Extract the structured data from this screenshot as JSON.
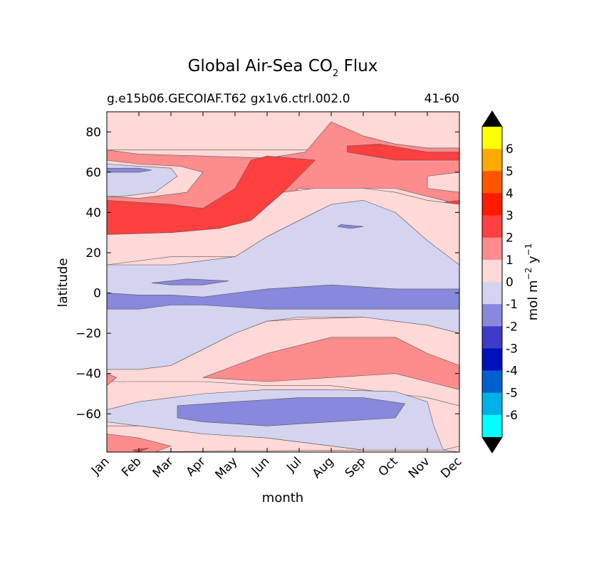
{
  "chart_data": {
    "type": "heatmap",
    "subtype": "filled-contour",
    "title_prefix": "Global Air-Sea CO",
    "title_sub": "2",
    "title_suffix": " Flux",
    "subtitle_left": "g.e15b06.GECOIAF.T62 gx1v6.ctrl.002.0",
    "subtitle_right": "41-60",
    "xlabel": "month",
    "ylabel": "latitude",
    "x_ticks": [
      "Jan",
      "Feb",
      "Mar",
      "Apr",
      "May",
      "Jun",
      "Jul",
      "Aug",
      "Sep",
      "Oct",
      "Nov",
      "Dec"
    ],
    "xlim": [
      1,
      12
    ],
    "ylim": [
      -79,
      90
    ],
    "y_ticks": [
      80,
      60,
      40,
      20,
      0,
      -20,
      -40,
      -60
    ],
    "colorbar": {
      "label_main": "mol m",
      "label_exp1": "−2",
      "label_mid": " y",
      "label_exp2": "−1",
      "levels": [
        6,
        5,
        4,
        3,
        2,
        1,
        0,
        -1,
        -2,
        -3,
        -4,
        -5,
        -6
      ],
      "level_labels": [
        "6",
        "5",
        "4",
        "3",
        "2",
        "1",
        "0",
        "-1",
        "-2",
        "-3",
        "-4",
        "-5",
        "-6"
      ],
      "bands": [
        {
          "range": [
            6,
            7
          ],
          "color": "#ffff00"
        },
        {
          "range": [
            5,
            6
          ],
          "color": "#ffaa00"
        },
        {
          "range": [
            4,
            5
          ],
          "color": "#ff5500"
        },
        {
          "range": [
            3,
            4
          ],
          "color": "#ff1a00"
        },
        {
          "range": [
            2,
            3
          ],
          "color": "#ff4040"
        },
        {
          "range": [
            1,
            2
          ],
          "color": "#ff8c8c"
        },
        {
          "range": [
            0,
            1
          ],
          "color": "#ffd8d8"
        },
        {
          "range": [
            -1,
            0
          ],
          "color": "#d4d4f0"
        },
        {
          "range": [
            -2,
            -1
          ],
          "color": "#8888dd"
        },
        {
          "range": [
            -3,
            -2
          ],
          "color": "#3c3cc8"
        },
        {
          "range": [
            -4,
            -3
          ],
          "color": "#0010bb"
        },
        {
          "range": [
            -5,
            -4
          ],
          "color": "#0060d0"
        },
        {
          "range": [
            -6,
            -5
          ],
          "color": "#00b0e8"
        },
        {
          "range": [
            -7,
            -6
          ],
          "color": "#00ffff"
        }
      ],
      "extend_max_color": "#000000",
      "extend_min_color": "#000000"
    },
    "regions": [
      {
        "name": "region-north-polar-0-1",
        "level": "0-1",
        "color": "#ffd8d8",
        "points": [
          [
            1,
            90
          ],
          [
            12,
            90
          ],
          [
            12,
            71
          ],
          [
            1,
            71
          ]
        ]
      },
      {
        "name": "region-northern-high-lat-1-2",
        "level": "1-2",
        "color": "#ff8c8c",
        "points": [
          [
            1,
            71
          ],
          [
            2,
            69
          ],
          [
            4,
            68
          ],
          [
            6,
            67
          ],
          [
            7.2,
            70
          ],
          [
            8,
            85
          ],
          [
            9,
            78
          ],
          [
            10,
            74
          ],
          [
            11,
            72
          ],
          [
            12,
            72
          ],
          [
            12,
            44
          ],
          [
            11,
            48
          ],
          [
            10,
            52
          ],
          [
            9,
            52
          ],
          [
            8,
            51
          ],
          [
            7,
            52
          ],
          [
            6,
            42
          ],
          [
            5,
            30
          ],
          [
            4,
            28
          ],
          [
            2,
            24
          ],
          [
            1,
            24
          ]
        ]
      },
      {
        "name": "region-north-subpolar-0-1",
        "level": "0-1",
        "color": "#ffd8d8",
        "points": [
          [
            1,
            66
          ],
          [
            2,
            64
          ],
          [
            3.3,
            63
          ],
          [
            4,
            60
          ],
          [
            3.5,
            50
          ],
          [
            2,
            47
          ],
          [
            1,
            48
          ]
        ]
      },
      {
        "name": "region-north-subpolar-neg-1-0",
        "level": "-1-0",
        "color": "#d4d4f0",
        "points": [
          [
            1,
            64
          ],
          [
            2,
            63
          ],
          [
            3,
            62
          ],
          [
            3.2,
            58
          ],
          [
            2.5,
            50
          ],
          [
            1.5,
            48
          ],
          [
            1,
            48
          ]
        ]
      },
      {
        "name": "region-north-patch-neg-2-1",
        "level": "-2--1",
        "color": "#8888dd",
        "points": [
          [
            1,
            62
          ],
          [
            2,
            62
          ],
          [
            2.4,
            61
          ],
          [
            2,
            60
          ],
          [
            1,
            60
          ]
        ]
      },
      {
        "name": "region-north-mid-lat-2-3",
        "level": "2-3",
        "color": "#ff4040",
        "points": [
          [
            1,
            46
          ],
          [
            3,
            44
          ],
          [
            4,
            42
          ],
          [
            5,
            52
          ],
          [
            5.5,
            66
          ],
          [
            6,
            68
          ],
          [
            7.5,
            66
          ],
          [
            6.5,
            50
          ],
          [
            5.5,
            36
          ],
          [
            4.5,
            32
          ],
          [
            3,
            30
          ],
          [
            1,
            29
          ]
        ]
      },
      {
        "name": "region-north-east-2-3",
        "level": "2-3",
        "color": "#ff4040",
        "points": [
          [
            8.5,
            73
          ],
          [
            9.5,
            74
          ],
          [
            11,
            70
          ],
          [
            12,
            70
          ],
          [
            12,
            66
          ],
          [
            10,
            66
          ],
          [
            8.5,
            70
          ]
        ]
      },
      {
        "name": "region-north-east-patch-2-3",
        "level": "2-3",
        "color": "#ff4040",
        "points": [
          [
            11,
            44
          ],
          [
            12,
            46
          ],
          [
            12,
            34
          ],
          [
            11.2,
            36
          ],
          [
            10.8,
            40
          ]
        ]
      },
      {
        "name": "region-north-east-0-1",
        "level": "0-1",
        "color": "#ffd8d8",
        "points": [
          [
            11,
            58
          ],
          [
            12,
            60
          ],
          [
            12,
            50
          ],
          [
            11,
            52
          ]
        ]
      },
      {
        "name": "region-north-subtropics-0-1",
        "level": "0-1",
        "color": "#ffd8d8",
        "points": [
          [
            1,
            29
          ],
          [
            3,
            30
          ],
          [
            4.5,
            32
          ],
          [
            5.5,
            36
          ],
          [
            6.5,
            50
          ],
          [
            7.5,
            52
          ],
          [
            9,
            52
          ],
          [
            10,
            50
          ],
          [
            11,
            46
          ],
          [
            12,
            44
          ],
          [
            12,
            14
          ],
          [
            11,
            20
          ],
          [
            10,
            26
          ],
          [
            9,
            34
          ],
          [
            8,
            44
          ],
          [
            7,
            36
          ],
          [
            6,
            28
          ],
          [
            5,
            18
          ],
          [
            3,
            18
          ],
          [
            1,
            14
          ]
        ]
      },
      {
        "name": "region-tropics-neg-1-0",
        "level": "-1-0",
        "color": "#d4d4f0",
        "points": [
          [
            1,
            14
          ],
          [
            3,
            14
          ],
          [
            5,
            18
          ],
          [
            6,
            28
          ],
          [
            7,
            36
          ],
          [
            8,
            44
          ],
          [
            9,
            46
          ],
          [
            10,
            40
          ],
          [
            11,
            26
          ],
          [
            12,
            14
          ],
          [
            12,
            -20
          ],
          [
            11,
            -16
          ],
          [
            9,
            -12
          ],
          [
            7,
            -12
          ],
          [
            6,
            -14
          ],
          [
            5,
            -20
          ],
          [
            4,
            -28
          ],
          [
            3,
            -36
          ],
          [
            2,
            -38
          ],
          [
            1,
            -38
          ]
        ]
      },
      {
        "name": "region-equatorial-neg-2-1",
        "level": "-2--1",
        "color": "#8888dd",
        "points": [
          [
            1,
            0
          ],
          [
            2,
            -1
          ],
          [
            3,
            -1
          ],
          [
            4,
            -2
          ],
          [
            6,
            2
          ],
          [
            8,
            4
          ],
          [
            10,
            2
          ],
          [
            12,
            2
          ],
          [
            12,
            -8
          ],
          [
            10,
            -8
          ],
          [
            8,
            -8
          ],
          [
            6,
            -8
          ],
          [
            4,
            -6
          ],
          [
            3,
            -6
          ],
          [
            2,
            -8
          ],
          [
            1,
            -8
          ]
        ]
      },
      {
        "name": "region-equatorial-patch-neg-2-1",
        "level": "-2--1",
        "color": "#8888dd",
        "points": [
          [
            2.4,
            5
          ],
          [
            3.5,
            7
          ],
          [
            4.8,
            6
          ],
          [
            4,
            4
          ],
          [
            3,
            4
          ]
        ]
      },
      {
        "name": "region-north-patch-2-neg-2-1",
        "level": "-2--1",
        "color": "#8888dd",
        "points": [
          [
            8.3,
            34
          ],
          [
            9,
            33
          ],
          [
            8.6,
            32
          ],
          [
            8.2,
            33
          ]
        ]
      },
      {
        "name": "region-south-subtropics-0-1",
        "level": "0-1",
        "color": "#ffd8d8",
        "points": [
          [
            1,
            -38
          ],
          [
            2,
            -38
          ],
          [
            3,
            -36
          ],
          [
            4,
            -28
          ],
          [
            5,
            -20
          ],
          [
            6,
            -14
          ],
          [
            7,
            -13
          ],
          [
            9,
            -12
          ],
          [
            11,
            -16
          ],
          [
            12,
            -20
          ],
          [
            12,
            -56
          ],
          [
            11,
            -52
          ],
          [
            10,
            -50
          ],
          [
            8,
            -46
          ],
          [
            6,
            -46
          ],
          [
            4,
            -44
          ],
          [
            2,
            -44
          ],
          [
            1,
            -44
          ]
        ]
      },
      {
        "name": "region-south-mid-lat-1-2",
        "level": "1-2",
        "color": "#ff8c8c",
        "points": [
          [
            4,
            -42
          ],
          [
            5,
            -36
          ],
          [
            6,
            -30
          ],
          [
            8,
            -22
          ],
          [
            10,
            -22
          ],
          [
            11,
            -30
          ],
          [
            12,
            -36
          ],
          [
            12,
            -48
          ],
          [
            11,
            -44
          ],
          [
            10,
            -40
          ],
          [
            8,
            -42
          ],
          [
            6,
            -44
          ]
        ]
      },
      {
        "name": "region-south-west-1-2",
        "level": "1-2",
        "color": "#ff8c8c",
        "points": [
          [
            1,
            -40
          ],
          [
            1.3,
            -42
          ],
          [
            1,
            -46
          ]
        ]
      },
      {
        "name": "region-southern-ocean-neg-1-0",
        "level": "-1-0",
        "color": "#d4d4f0",
        "points": [
          [
            1,
            -58
          ],
          [
            2,
            -54
          ],
          [
            4,
            -50
          ],
          [
            6,
            -48
          ],
          [
            8,
            -48
          ],
          [
            10,
            -49
          ],
          [
            11,
            -54
          ],
          [
            11.2,
            -66
          ],
          [
            11.5,
            -78
          ],
          [
            9,
            -78
          ],
          [
            6,
            -72
          ],
          [
            4,
            -70
          ],
          [
            2,
            -66
          ],
          [
            1,
            -64
          ]
        ]
      },
      {
        "name": "region-southern-ocean-neg-2-1",
        "level": "-2--1",
        "color": "#8888dd",
        "points": [
          [
            3.2,
            -56
          ],
          [
            5,
            -54
          ],
          [
            7,
            -52
          ],
          [
            9,
            -52
          ],
          [
            10.3,
            -55
          ],
          [
            10,
            -62
          ],
          [
            8,
            -64
          ],
          [
            6,
            -66
          ],
          [
            4,
            -64
          ],
          [
            3.2,
            -62
          ]
        ]
      },
      {
        "name": "region-antarctic-0-1",
        "level": "0-1",
        "color": "#ffd8d8",
        "points": [
          [
            1,
            -66
          ],
          [
            2,
            -66
          ],
          [
            4,
            -70
          ],
          [
            6,
            -72
          ],
          [
            9,
            -78
          ],
          [
            1,
            -79
          ]
        ]
      },
      {
        "name": "region-antarctic-1-2",
        "level": "1-2",
        "color": "#ff8c8c",
        "points": [
          [
            1,
            -70
          ],
          [
            2,
            -72
          ],
          [
            3,
            -76
          ],
          [
            2.5,
            -79
          ],
          [
            1,
            -79
          ]
        ]
      },
      {
        "name": "region-antarctic-patch-2-3",
        "level": "2-3",
        "color": "#ff4040",
        "points": [
          [
            1.8,
            -78
          ],
          [
            2.3,
            -77
          ],
          [
            2,
            -79
          ]
        ]
      },
      {
        "name": "region-antarctic-east-0-1",
        "level": "0-1",
        "color": "#ffd8d8",
        "points": [
          [
            11.5,
            -78
          ],
          [
            12,
            -76
          ],
          [
            12,
            -79
          ]
        ]
      }
    ]
  }
}
